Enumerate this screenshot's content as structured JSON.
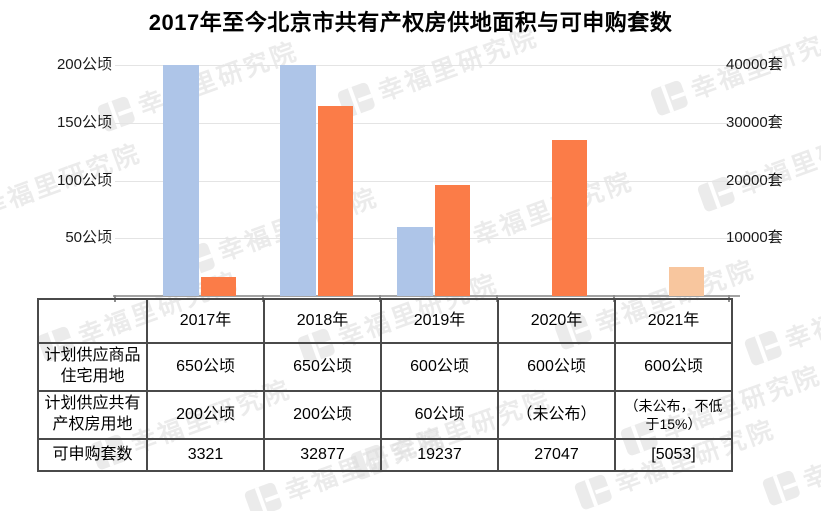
{
  "title": "2017年至今北京市共有产权房供地面积与可申购套数",
  "watermark": {
    "text": "幸福里研究院"
  },
  "chart_data": {
    "type": "bar",
    "dual_axis": true,
    "title": "2017年至今北京市共有产权房供地面积与可申购套数",
    "categories": [
      "2017年",
      "2018年",
      "2019年",
      "2020年",
      "2021年"
    ],
    "series": [
      {
        "name": "共有产权房供地面积",
        "axis": "left",
        "unit": "公顷",
        "color": "#aec5e8",
        "values": [
          200,
          200,
          60,
          null,
          null
        ]
      },
      {
        "name": "可申购套数",
        "axis": "right",
        "unit": "套",
        "color": "#fb7c48",
        "values": [
          3321,
          32877,
          19237,
          27047,
          5053
        ],
        "value_colors": [
          null,
          null,
          null,
          null,
          "#f8c69e"
        ]
      }
    ],
    "left_axis": {
      "tick_labels": [
        "200公顷",
        "150公顷",
        "100公顷",
        "50公顷"
      ],
      "tick_values": [
        200,
        150,
        100,
        50
      ],
      "max": 200,
      "min": 0
    },
    "right_axis": {
      "tick_labels": [
        "40000套",
        "30000套",
        "20000套",
        "10000套"
      ],
      "tick_values": [
        40000,
        30000,
        20000,
        10000
      ],
      "max": 40000,
      "min": 0
    },
    "grid": true,
    "legend": "none"
  },
  "table": {
    "header": [
      "",
      "2017年",
      "2018年",
      "2019年",
      "2020年",
      "2021年"
    ],
    "rows": [
      {
        "label": "计划供应商品住宅用地",
        "values": [
          "650公顷",
          "650公顷",
          "600公顷",
          "600公顷",
          "600公顷"
        ]
      },
      {
        "label": "计划供应共有产权房用地",
        "values": [
          "200公顷",
          "200公顷",
          "60公顷",
          "（未公布）",
          "（未公布，不低于15%）"
        ]
      },
      {
        "label": "可申购套数",
        "values": [
          "3321",
          "32877",
          "19237",
          "27047",
          "[5053]"
        ]
      }
    ]
  }
}
